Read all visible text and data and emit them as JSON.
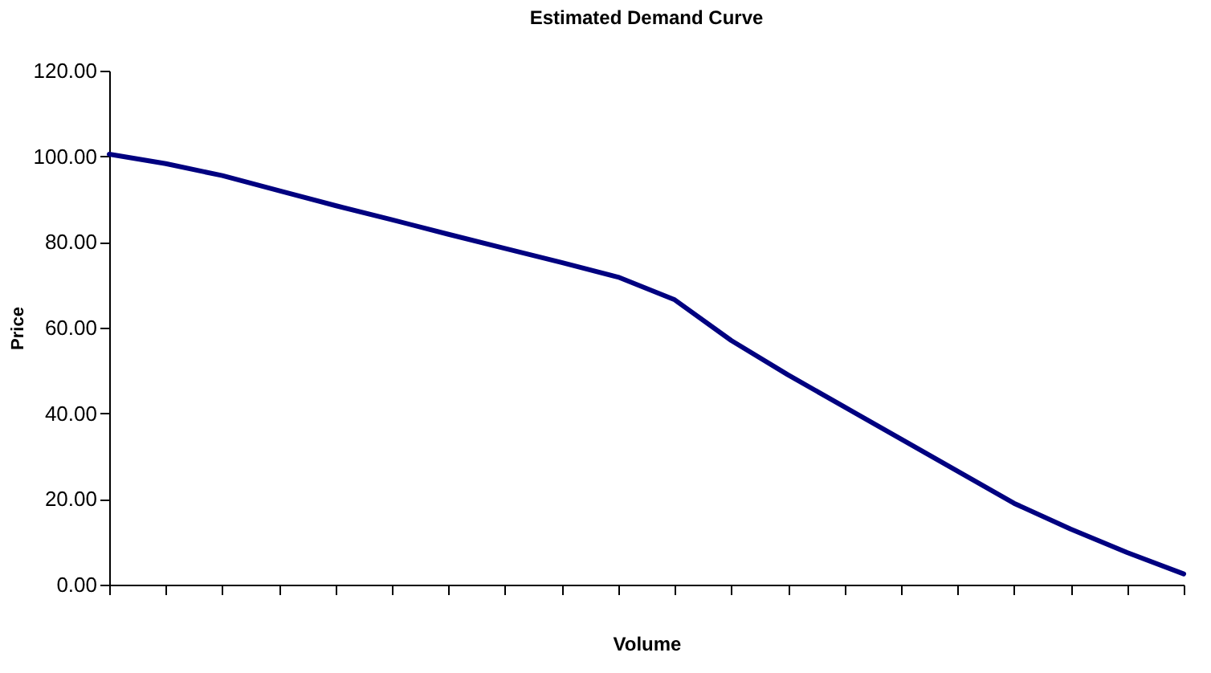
{
  "chart_data": {
    "type": "line",
    "title": "Estimated Demand Curve",
    "xlabel": "Volume",
    "ylabel": "Price",
    "categories": [
      null,
      null,
      null,
      null,
      null,
      null,
      null,
      null,
      null,
      null,
      null,
      null,
      null,
      null,
      null,
      null,
      null,
      null,
      null,
      null
    ],
    "series": [
      {
        "color": "#000080",
        "values": [
          100.5,
          98.3,
          95.5,
          92,
          88.5,
          85.2,
          81.8,
          78.5,
          75.2,
          71.8,
          66.5,
          57,
          49,
          41.5,
          34,
          26.5,
          19,
          13,
          7.5,
          2.5
        ]
      }
    ],
    "ylim": [
      0,
      120
    ],
    "yticks": [
      {
        "value": 0,
        "label": "0.00"
      },
      {
        "value": 20,
        "label": "20.00"
      },
      {
        "value": 40,
        "label": "40.00"
      },
      {
        "value": 60,
        "label": "60.00"
      },
      {
        "value": 80,
        "label": "80.00"
      },
      {
        "value": 100,
        "label": "100.00"
      },
      {
        "value": 120,
        "label": "120.00"
      }
    ],
    "grid": false,
    "marker": "none",
    "line_style": "solid",
    "tick_labels": "y"
  }
}
